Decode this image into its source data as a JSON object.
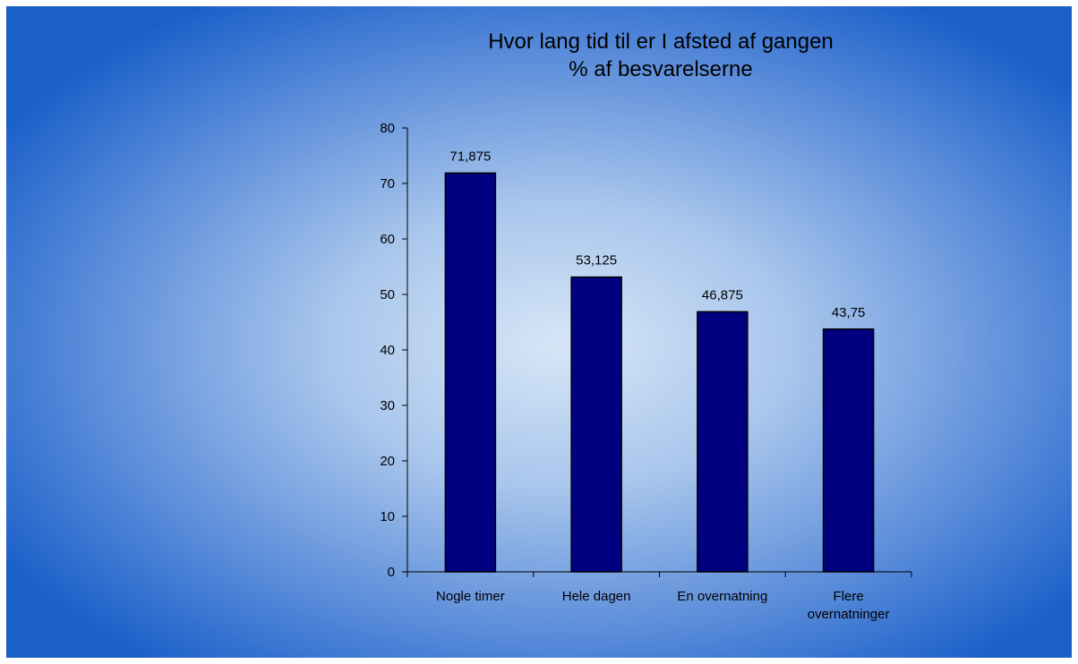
{
  "chart_data": {
    "type": "bar",
    "title": "Hvor lang tid til er I afsted af gangen",
    "subtitle": "% af besvarelserne",
    "categories": [
      "Nogle timer",
      "Hele dagen",
      "En overnatning",
      "Flere overnatninger"
    ],
    "values": [
      71.875,
      53.125,
      46.875,
      43.75
    ],
    "value_labels": [
      "71,875",
      "53,125",
      "46,875",
      "43,75"
    ],
    "color": "#000080",
    "ylim": [
      0,
      80
    ],
    "yticks": [
      0,
      10,
      20,
      30,
      40,
      50,
      60,
      70,
      80
    ],
    "grid": false
  }
}
